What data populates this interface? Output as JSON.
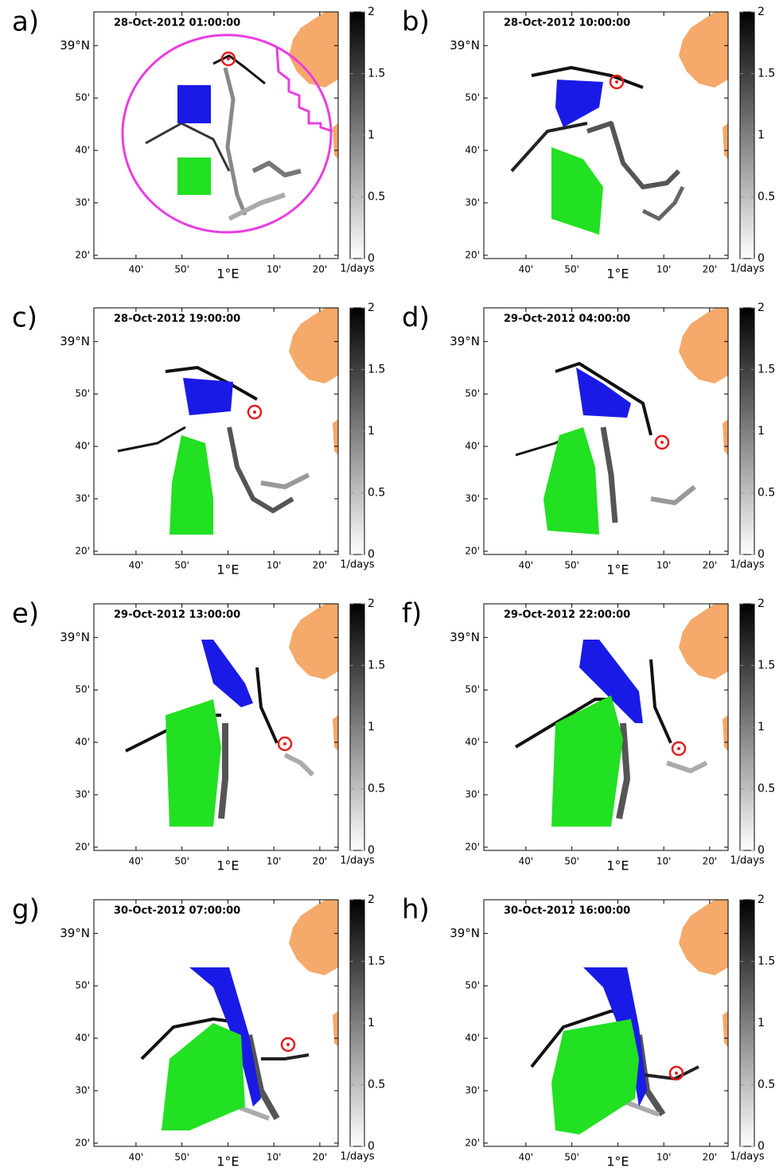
{
  "panels": [
    {
      "label": "a)",
      "title": "28-Oct-2012 01:00:00"
    },
    {
      "label": "b)",
      "title": "28-Oct-2012 10:00:00"
    },
    {
      "label": "c)",
      "title": "28-Oct-2012 19:00:00"
    },
    {
      "label": "d)",
      "title": "29-Oct-2012 04:00:00"
    },
    {
      "label": "e)",
      "title": "29-Oct-2012 13:00:00"
    },
    {
      "label": "f)",
      "title": "29-Oct-2012 22:00:00"
    },
    {
      "label": "g)",
      "title": "30-Oct-2012 07:00:00"
    },
    {
      "label": "h)",
      "title": "30-Oct-2012 16:00:00"
    }
  ],
  "axes": {
    "lon_lim": [
      0.514,
      1.4
    ],
    "lat_lim": [
      38.323,
      39.107
    ],
    "lon_ticks": [
      {
        "value": 0.6667,
        "label": "40'"
      },
      {
        "value": 0.8333,
        "label": "50'"
      },
      {
        "value": 1,
        "label": "1°E"
      },
      {
        "value": 1.1667,
        "label": "10'"
      },
      {
        "value": 1.3333,
        "label": "20'"
      }
    ],
    "lat_ticks": [
      {
        "value": 39,
        "label": "39°N"
      },
      {
        "value": 38.8333,
        "label": "50'"
      },
      {
        "value": 38.6667,
        "label": "40'"
      },
      {
        "value": 38.5,
        "label": "30'"
      },
      {
        "value": 38.3333,
        "label": "20'"
      }
    ]
  },
  "colorbar": {
    "lim": [
      0,
      2
    ],
    "ticks": [
      0,
      0.5,
      1,
      1.5,
      2
    ],
    "unit": "1/days"
  }
}
